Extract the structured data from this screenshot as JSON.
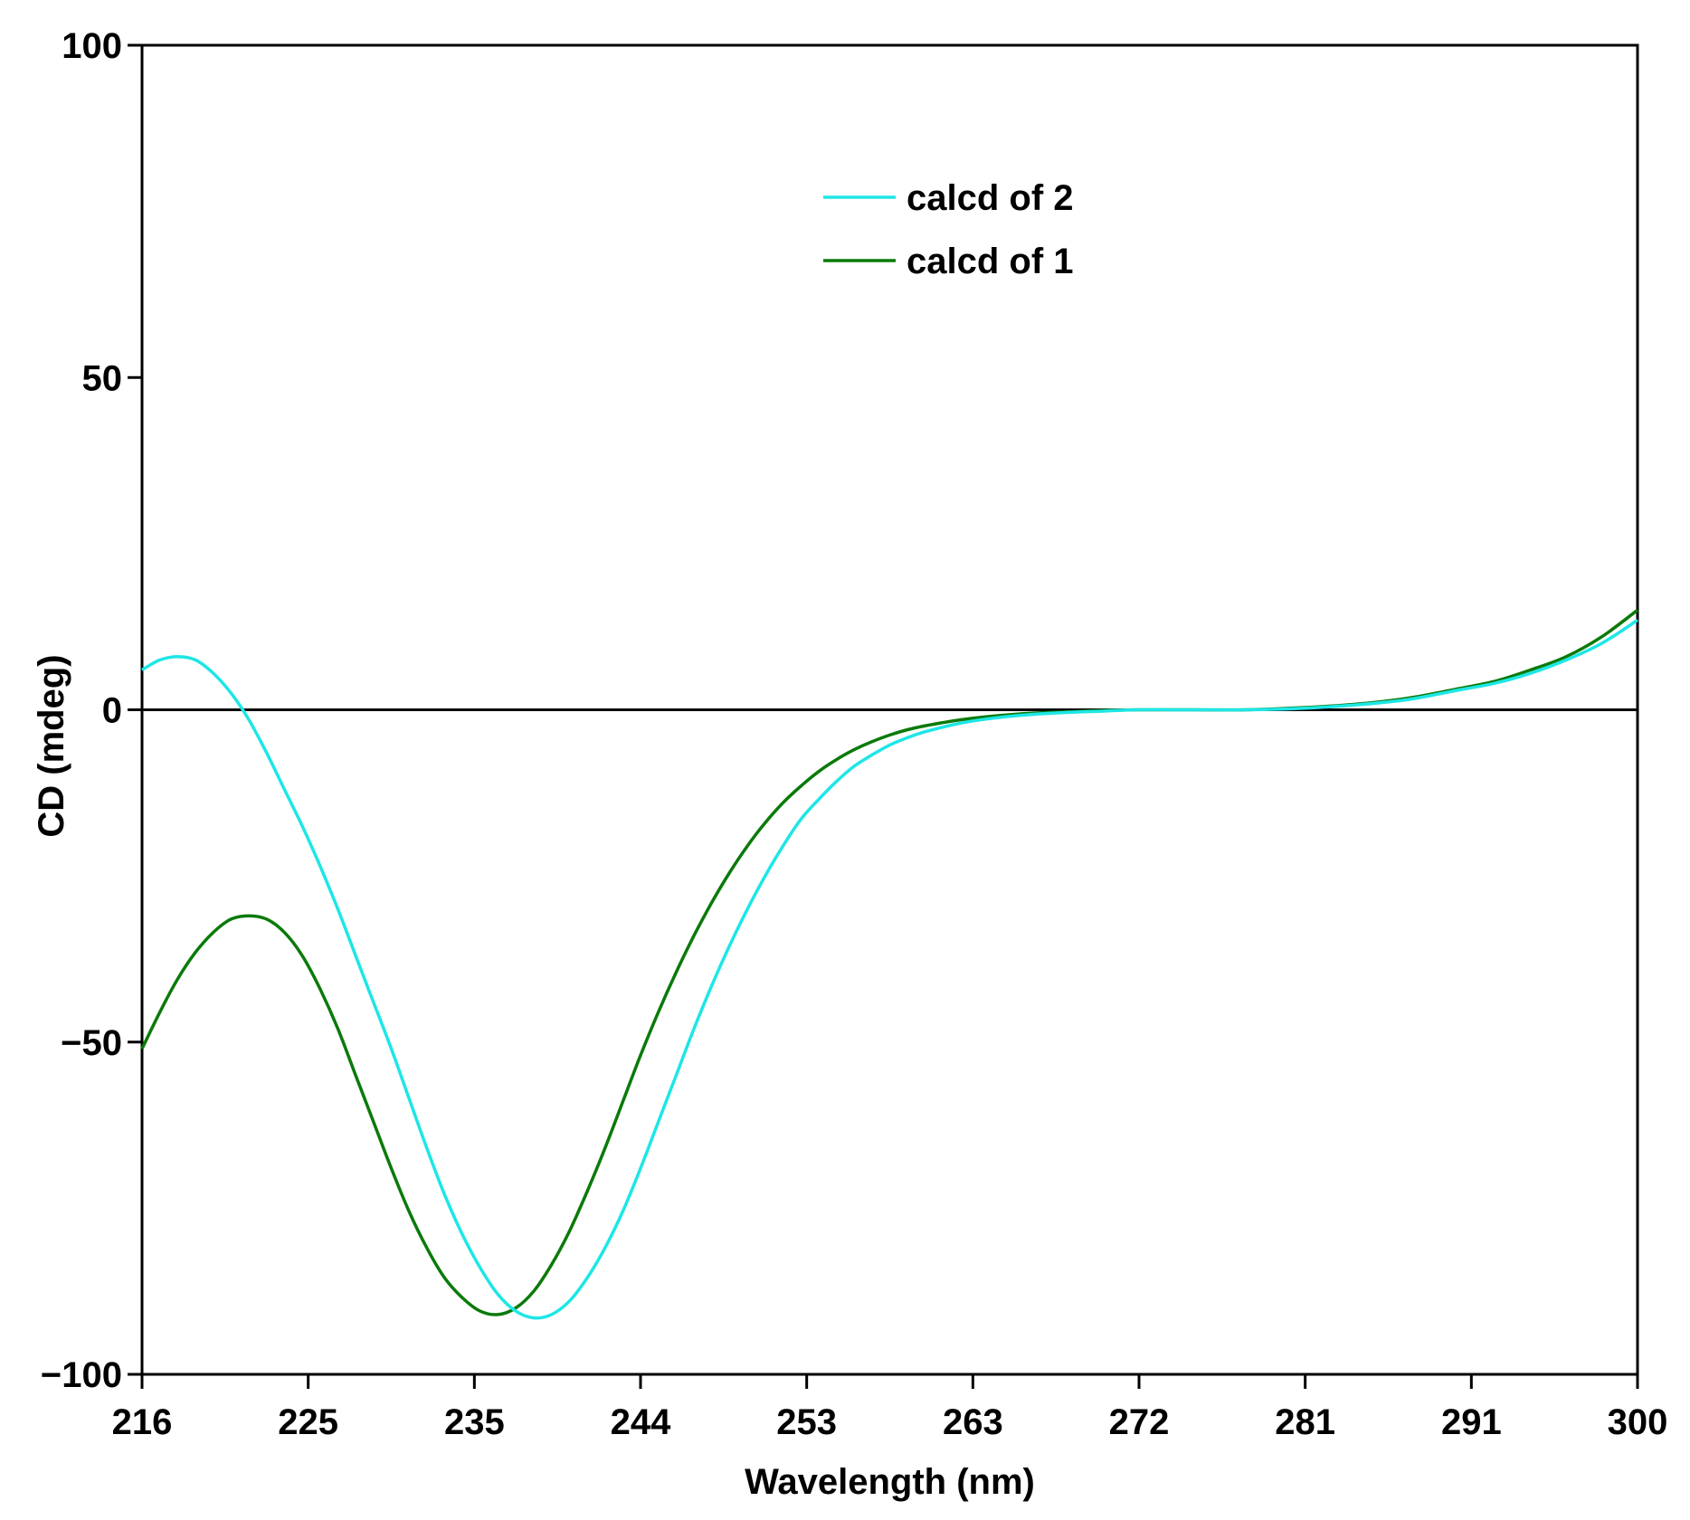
{
  "chart_data": {
    "type": "line",
    "title": "",
    "xlabel": "Wavelength (nm)",
    "ylabel": "CD (mdeg)",
    "xlim": [
      216,
      300
    ],
    "ylim": [
      -100,
      100
    ],
    "x_ticks": [
      "216",
      "225",
      "235",
      "244",
      "253",
      "263",
      "272",
      "281",
      "291",
      "300"
    ],
    "y_ticks": [
      "100",
      "50",
      "0",
      "−50",
      "−100"
    ],
    "grid": false,
    "legend_position": "top-center",
    "series": [
      {
        "name": "calcd of 2",
        "color": "#1ee6e6",
        "x": [
          216,
          217,
          218,
          219,
          220,
          221,
          222,
          223,
          224,
          225,
          226,
          227,
          228,
          229,
          230,
          231,
          232,
          233,
          234,
          235,
          236,
          237,
          238,
          239,
          240,
          241,
          242,
          243,
          244,
          245,
          246,
          247,
          248,
          249,
          250,
          251,
          252,
          253,
          254,
          255,
          256,
          257,
          258,
          259,
          260,
          262,
          264,
          266,
          268,
          270,
          272,
          275,
          278,
          281,
          284,
          287,
          290,
          292,
          294,
          296,
          298,
          300
        ],
        "y": [
          6,
          7.5,
          8,
          7.5,
          5.5,
          2.5,
          -1.5,
          -6.5,
          -12,
          -17.5,
          -23.5,
          -30,
          -37,
          -44,
          -51,
          -58.5,
          -66,
          -73,
          -79,
          -84,
          -88,
          -90.5,
          -91.5,
          -91,
          -89,
          -85.5,
          -81,
          -75.5,
          -69,
          -62,
          -55,
          -48,
          -41.5,
          -35.5,
          -30,
          -25,
          -20.5,
          -16.5,
          -13.5,
          -10.8,
          -8.5,
          -6.8,
          -5.3,
          -4.2,
          -3.3,
          -2,
          -1.2,
          -0.7,
          -0.4,
          -0.2,
          0,
          0,
          0,
          0.2,
          0.7,
          1.5,
          3,
          4,
          5.5,
          7.5,
          10,
          13.5
        ]
      },
      {
        "name": "calcd of 1",
        "color": "#0a7a0a",
        "x": [
          216,
          217,
          218,
          219,
          220,
          221,
          222,
          223,
          224,
          225,
          226,
          227,
          228,
          229,
          230,
          231,
          232,
          233,
          234,
          235,
          236,
          237,
          238,
          239,
          240,
          241,
          242,
          243,
          244,
          245,
          246,
          247,
          248,
          249,
          250,
          251,
          252,
          253,
          254,
          255,
          256,
          257,
          258,
          259,
          260,
          262,
          264,
          266,
          268,
          270,
          272,
          275,
          278,
          281,
          284,
          287,
          290,
          292,
          294,
          296,
          298,
          300
        ],
        "y": [
          -51,
          -45.5,
          -40.5,
          -36.5,
          -33.5,
          -31.5,
          -31,
          -31.5,
          -33.5,
          -37,
          -42,
          -48,
          -55,
          -62,
          -69,
          -75.5,
          -81,
          -85.5,
          -88.5,
          -90.5,
          -91,
          -90,
          -87.5,
          -83.5,
          -78.5,
          -72.5,
          -66,
          -59,
          -52,
          -45.5,
          -39.5,
          -34,
          -29,
          -24.5,
          -20.5,
          -17,
          -14,
          -11.5,
          -9.3,
          -7.5,
          -6,
          -4.8,
          -3.8,
          -3,
          -2.4,
          -1.5,
          -0.9,
          -0.5,
          -0.3,
          -0.1,
          0,
          0,
          0,
          0.3,
          0.8,
          1.7,
          3.2,
          4.3,
          6,
          8,
          11,
          15
        ]
      }
    ]
  }
}
